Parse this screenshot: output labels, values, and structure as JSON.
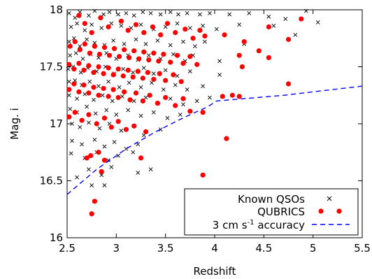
{
  "chart_data": {
    "type": "scatter",
    "title": "",
    "xlabel": "Redshift",
    "ylabel": "Mag. i",
    "xlim": [
      2.5,
      5.5
    ],
    "ylim": [
      16,
      18
    ],
    "x_ticks": [
      2.5,
      3,
      3.5,
      4,
      4.5,
      5,
      5.5
    ],
    "x_tick_labels": [
      "2.5",
      "3",
      "3.5",
      "4",
      "4.5",
      "5",
      "5.5"
    ],
    "y_ticks": [
      16,
      16.5,
      17,
      17.5,
      18
    ],
    "y_tick_labels": [
      "16",
      "16.5",
      "17",
      "17.5",
      "18"
    ],
    "grid": false,
    "legend_position": "bottom-right",
    "series": [
      {
        "name": "Known QSOs",
        "marker": "x",
        "color": "#000000",
        "points": [
          [
            2.52,
            17.97
          ],
          [
            2.58,
            17.93
          ],
          [
            2.63,
            17.98
          ],
          [
            2.72,
            17.95
          ],
          [
            2.78,
            17.99
          ],
          [
            2.87,
            17.96
          ],
          [
            2.93,
            17.98
          ],
          [
            3.02,
            17.96
          ],
          [
            3.1,
            17.97
          ],
          [
            3.18,
            17.95
          ],
          [
            3.27,
            17.98
          ],
          [
            3.35,
            17.97
          ],
          [
            3.45,
            17.96
          ],
          [
            3.55,
            17.98
          ],
          [
            3.63,
            17.96
          ],
          [
            3.72,
            17.97
          ],
          [
            3.85,
            17.96
          ],
          [
            3.95,
            17.97
          ],
          [
            4.15,
            17.96
          ],
          [
            4.35,
            17.97
          ],
          [
            4.55,
            17.94
          ],
          [
            4.72,
            17.92
          ],
          [
            4.93,
            17.99
          ],
          [
            5.05,
            17.89
          ],
          [
            2.54,
            17.85
          ],
          [
            2.6,
            17.88
          ],
          [
            2.68,
            17.82
          ],
          [
            2.75,
            17.87
          ],
          [
            2.85,
            17.84
          ],
          [
            2.95,
            17.88
          ],
          [
            3.05,
            17.86
          ],
          [
            3.15,
            17.84
          ],
          [
            3.25,
            17.87
          ],
          [
            3.38,
            17.83
          ],
          [
            3.5,
            17.85
          ],
          [
            3.62,
            17.88
          ],
          [
            3.75,
            17.84
          ],
          [
            3.88,
            17.86
          ],
          [
            4.02,
            17.83
          ],
          [
            4.25,
            17.87
          ],
          [
            4.6,
            17.86
          ],
          [
            4.82,
            17.78
          ],
          [
            2.52,
            17.72
          ],
          [
            2.57,
            17.75
          ],
          [
            2.63,
            17.68
          ],
          [
            2.7,
            17.74
          ],
          [
            2.78,
            17.71
          ],
          [
            2.88,
            17.69
          ],
          [
            2.97,
            17.73
          ],
          [
            3.08,
            17.7
          ],
          [
            3.2,
            17.74
          ],
          [
            3.3,
            17.7
          ],
          [
            3.42,
            17.73
          ],
          [
            3.55,
            17.69
          ],
          [
            3.68,
            17.72
          ],
          [
            3.8,
            17.68
          ],
          [
            3.9,
            17.72
          ],
          [
            4.3,
            17.7
          ],
          [
            2.53,
            17.6
          ],
          [
            2.59,
            17.62
          ],
          [
            2.66,
            17.57
          ],
          [
            2.74,
            17.61
          ],
          [
            2.82,
            17.58
          ],
          [
            2.9,
            17.62
          ],
          [
            3.0,
            17.57
          ],
          [
            3.12,
            17.6
          ],
          [
            3.22,
            17.56
          ],
          [
            3.33,
            17.6
          ],
          [
            3.45,
            17.57
          ],
          [
            3.58,
            17.61
          ],
          [
            3.7,
            17.55
          ],
          [
            3.78,
            17.6
          ],
          [
            4.05,
            17.55
          ],
          [
            2.51,
            17.48
          ],
          [
            2.56,
            17.5
          ],
          [
            2.64,
            17.45
          ],
          [
            2.71,
            17.49
          ],
          [
            2.8,
            17.46
          ],
          [
            2.89,
            17.5
          ],
          [
            2.98,
            17.44
          ],
          [
            3.07,
            17.48
          ],
          [
            3.17,
            17.45
          ],
          [
            3.28,
            17.49
          ],
          [
            3.38,
            17.44
          ],
          [
            3.5,
            17.47
          ],
          [
            3.62,
            17.42
          ],
          [
            3.75,
            17.46
          ],
          [
            4.05,
            17.43
          ],
          [
            2.52,
            17.37
          ],
          [
            2.58,
            17.38
          ],
          [
            2.65,
            17.34
          ],
          [
            2.73,
            17.37
          ],
          [
            2.82,
            17.33
          ],
          [
            2.92,
            17.37
          ],
          [
            3.03,
            17.32
          ],
          [
            3.13,
            17.36
          ],
          [
            3.25,
            17.32
          ],
          [
            3.36,
            17.36
          ],
          [
            3.48,
            17.3
          ],
          [
            3.6,
            17.34
          ],
          [
            3.72,
            17.3
          ],
          [
            3.88,
            17.33
          ],
          [
            2.52,
            17.25
          ],
          [
            2.6,
            17.22
          ],
          [
            2.68,
            17.26
          ],
          [
            2.77,
            17.21
          ],
          [
            2.86,
            17.25
          ],
          [
            2.96,
            17.2
          ],
          [
            3.06,
            17.24
          ],
          [
            3.18,
            17.2
          ],
          [
            3.3,
            17.23
          ],
          [
            3.42,
            17.18
          ],
          [
            3.55,
            17.22
          ],
          [
            3.68,
            17.17
          ],
          [
            3.82,
            17.2
          ],
          [
            3.95,
            17.23
          ],
          [
            2.53,
            17.13
          ],
          [
            2.6,
            17.1
          ],
          [
            2.7,
            17.15
          ],
          [
            2.79,
            17.09
          ],
          [
            2.9,
            17.12
          ],
          [
            3.0,
            17.08
          ],
          [
            3.12,
            17.12
          ],
          [
            3.25,
            17.07
          ],
          [
            3.38,
            17.1
          ],
          [
            3.52,
            17.05
          ],
          [
            3.65,
            17.08
          ],
          [
            2.55,
            17.0
          ],
          [
            2.63,
            16.97
          ],
          [
            2.72,
            17.01
          ],
          [
            2.83,
            16.96
          ],
          [
            2.93,
            17.0
          ],
          [
            3.05,
            16.94
          ],
          [
            3.18,
            16.98
          ],
          [
            3.28,
            16.9
          ],
          [
            3.45,
            16.95
          ],
          [
            2.55,
            16.85
          ],
          [
            2.65,
            16.82
          ],
          [
            2.78,
            16.86
          ],
          [
            2.88,
            16.8
          ],
          [
            2.98,
            16.84
          ],
          [
            3.1,
            16.78
          ],
          [
            3.22,
            16.82
          ],
          [
            2.54,
            16.74
          ],
          [
            2.68,
            16.7
          ],
          [
            2.8,
            16.75
          ],
          [
            2.92,
            16.68
          ],
          [
            3.02,
            16.72
          ],
          [
            3.17,
            16.75
          ],
          [
            2.6,
            16.53
          ],
          [
            2.72,
            16.6
          ],
          [
            2.85,
            16.55
          ],
          [
            2.88,
            16.46
          ],
          [
            2.75,
            16.46
          ],
          [
            3.22,
            16.57
          ],
          [
            2.95,
            16.62
          ],
          [
            3.35,
            16.6
          ]
        ]
      },
      {
        "name": "QUBRICS",
        "marker": "circle",
        "color": "#ff0000",
        "points": [
          [
            2.62,
            17.95
          ],
          [
            2.68,
            17.88
          ],
          [
            2.75,
            17.8
          ],
          [
            2.84,
            17.93
          ],
          [
            2.92,
            17.85
          ],
          [
            3.05,
            17.9
          ],
          [
            3.12,
            17.82
          ],
          [
            3.2,
            17.87
          ],
          [
            3.28,
            17.8
          ],
          [
            3.37,
            17.85
          ],
          [
            3.45,
            17.78
          ],
          [
            3.52,
            17.88
          ],
          [
            3.6,
            17.8
          ],
          [
            3.7,
            17.83
          ],
          [
            3.78,
            17.75
          ],
          [
            3.85,
            17.82
          ],
          [
            3.9,
            17.77
          ],
          [
            4.1,
            17.78
          ],
          [
            4.3,
            17.72
          ],
          [
            4.55,
            17.85
          ],
          [
            4.75,
            17.74
          ],
          [
            4.88,
            17.92
          ],
          [
            2.53,
            17.68
          ],
          [
            2.58,
            17.72
          ],
          [
            2.63,
            17.65
          ],
          [
            2.68,
            17.7
          ],
          [
            2.73,
            17.62
          ],
          [
            2.78,
            17.68
          ],
          [
            2.83,
            17.61
          ],
          [
            2.88,
            17.67
          ],
          [
            2.93,
            17.6
          ],
          [
            2.98,
            17.66
          ],
          [
            3.03,
            17.59
          ],
          [
            3.08,
            17.65
          ],
          [
            3.13,
            17.58
          ],
          [
            3.18,
            17.64
          ],
          [
            3.23,
            17.57
          ],
          [
            3.28,
            17.63
          ],
          [
            3.33,
            17.56
          ],
          [
            3.38,
            17.62
          ],
          [
            3.43,
            17.55
          ],
          [
            3.48,
            17.61
          ],
          [
            3.55,
            17.54
          ],
          [
            3.62,
            17.6
          ],
          [
            3.68,
            17.53
          ],
          [
            3.75,
            17.59
          ],
          [
            3.82,
            17.52
          ],
          [
            4.25,
            17.6
          ],
          [
            4.45,
            17.64
          ],
          [
            4.55,
            17.58
          ],
          [
            2.52,
            17.52
          ],
          [
            2.57,
            17.48
          ],
          [
            2.62,
            17.53
          ],
          [
            2.67,
            17.47
          ],
          [
            2.72,
            17.51
          ],
          [
            2.77,
            17.45
          ],
          [
            2.82,
            17.5
          ],
          [
            2.87,
            17.44
          ],
          [
            2.92,
            17.49
          ],
          [
            2.97,
            17.43
          ],
          [
            3.02,
            17.48
          ],
          [
            3.07,
            17.42
          ],
          [
            3.12,
            17.47
          ],
          [
            3.17,
            17.41
          ],
          [
            3.22,
            17.46
          ],
          [
            3.27,
            17.4
          ],
          [
            3.32,
            17.45
          ],
          [
            3.38,
            17.39
          ],
          [
            3.44,
            17.44
          ],
          [
            3.5,
            17.38
          ],
          [
            3.58,
            17.43
          ],
          [
            3.66,
            17.37
          ],
          [
            4.28,
            17.5
          ],
          [
            2.52,
            17.3
          ],
          [
            2.57,
            17.35
          ],
          [
            2.62,
            17.28
          ],
          [
            2.67,
            17.34
          ],
          [
            2.72,
            17.27
          ],
          [
            2.77,
            17.32
          ],
          [
            2.82,
            17.25
          ],
          [
            2.87,
            17.31
          ],
          [
            2.92,
            17.24
          ],
          [
            2.97,
            17.3
          ],
          [
            3.02,
            17.23
          ],
          [
            3.08,
            17.28
          ],
          [
            3.14,
            17.21
          ],
          [
            3.2,
            17.27
          ],
          [
            3.27,
            17.2
          ],
          [
            3.34,
            17.25
          ],
          [
            3.42,
            17.18
          ],
          [
            3.5,
            17.23
          ],
          [
            3.6,
            17.16
          ],
          [
            3.68,
            17.22
          ],
          [
            3.75,
            17.11
          ],
          [
            3.88,
            17.1
          ],
          [
            4.08,
            17.24
          ],
          [
            4.18,
            17.25
          ],
          [
            4.25,
            17.24
          ],
          [
            4.75,
            17.35
          ],
          [
            2.52,
            17.06
          ],
          [
            2.58,
            17.1
          ],
          [
            2.65,
            17.03
          ],
          [
            2.72,
            17.08
          ],
          [
            2.8,
            17.0
          ],
          [
            2.88,
            17.05
          ],
          [
            2.95,
            16.97
          ],
          [
            3.02,
            17.02
          ],
          [
            3.1,
            16.95
          ],
          [
            3.18,
            16.98
          ],
          [
            3.3,
            16.93
          ],
          [
            4.12,
            16.87
          ],
          [
            2.7,
            16.7
          ],
          [
            2.74,
            16.72
          ],
          [
            2.82,
            16.75
          ],
          [
            2.88,
            16.68
          ],
          [
            3.25,
            16.7
          ],
          [
            2.85,
            16.58
          ],
          [
            3.88,
            16.55
          ],
          [
            2.78,
            16.32
          ],
          [
            2.75,
            16.21
          ]
        ]
      },
      {
        "name": "3 cm s-1 accuracy",
        "marker": "dashed-line",
        "color": "#0000ff",
        "points": [
          [
            2.5,
            16.38
          ],
          [
            2.8,
            16.6
          ],
          [
            3.1,
            16.78
          ],
          [
            3.4,
            16.93
          ],
          [
            3.7,
            17.06
          ],
          [
            3.93,
            17.15
          ],
          [
            4.02,
            17.2
          ],
          [
            4.3,
            17.22
          ],
          [
            4.7,
            17.25
          ],
          [
            5.1,
            17.29
          ],
          [
            5.5,
            17.33
          ]
        ]
      }
    ]
  },
  "legend": {
    "known_label": "Known QSOs",
    "qubrics_label": "QUBRICS",
    "accuracy_label_main": "3 cm s",
    "accuracy_label_sup": "-1",
    "accuracy_label_tail": " accuracy"
  }
}
